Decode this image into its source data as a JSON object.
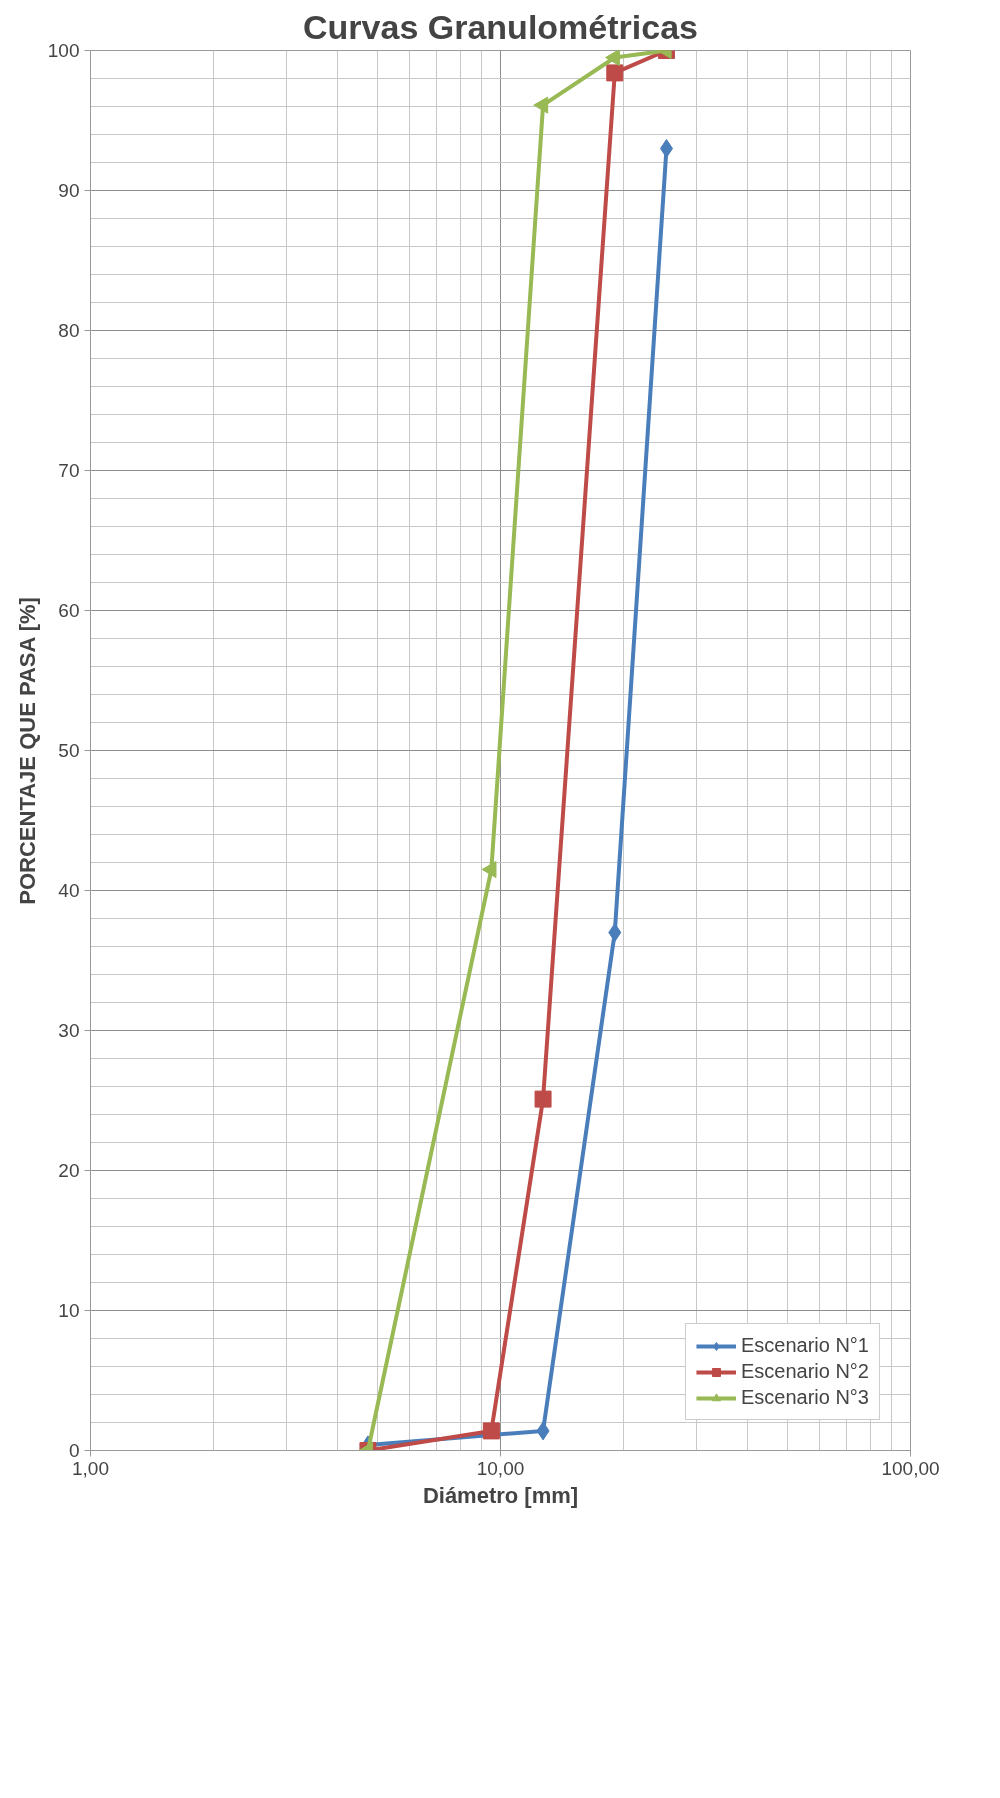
{
  "chart_data": {
    "type": "line",
    "title": "Curvas Granulométricas",
    "xlabel": "Diámetro [mm]",
    "ylabel": "PORCENTAJE QUE PASA [%]",
    "x": [
      25.4,
      19.0,
      12.7,
      9.5,
      4.75
    ],
    "series": [
      {
        "name": "Escenario N°1",
        "color": "#4a7ebb",
        "marker": "diamond",
        "values": [
          93,
          37,
          1.4,
          null,
          0.4
        ]
      },
      {
        "name": "Escenario N°2",
        "color": "#be4b48",
        "marker": "square",
        "values": [
          100,
          98.4,
          25.1,
          1.4,
          0
        ]
      },
      {
        "name": "Escenario N°3",
        "color": "#98b954",
        "marker": "triangle",
        "values": [
          100,
          99.5,
          96.1,
          41.5,
          0
        ]
      }
    ],
    "log": "x",
    "xlim": [
      1,
      100
    ],
    "xticks": [
      {
        "value": 1,
        "label": "1,00"
      },
      {
        "value": 10,
        "label": "10,00"
      },
      {
        "value": 100,
        "label": "100,00"
      }
    ],
    "ylim": [
      0,
      100
    ],
    "yticks": [
      0,
      10,
      20,
      30,
      40,
      50,
      60,
      70,
      80,
      90,
      100
    ],
    "grid": true,
    "legend": "bottom right",
    "line_style": "solid"
  }
}
